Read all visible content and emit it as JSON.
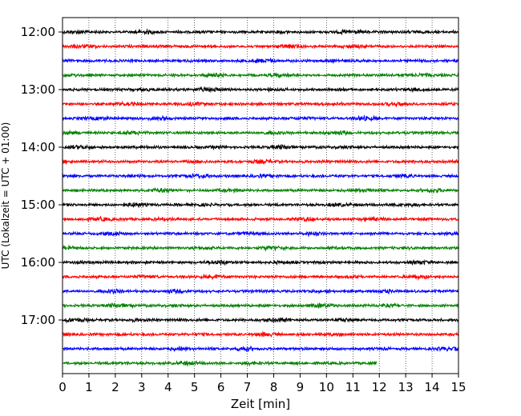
{
  "chart_data": {
    "type": "line",
    "subtype": "helicorder",
    "title": "",
    "xlabel": "Zeit  [min]",
    "ylabel": "UTC (Lokalzeit = UTC + 01:00)",
    "xlim": [
      0,
      15
    ],
    "x_ticks": [
      0,
      1,
      2,
      3,
      4,
      5,
      6,
      7,
      8,
      9,
      10,
      11,
      12,
      13,
      14,
      15
    ],
    "x_tick_labels": [
      "0",
      "1",
      "2",
      "3",
      "4",
      "5",
      "6",
      "7",
      "8",
      "9",
      "10",
      "11",
      "12",
      "13",
      "14",
      "15"
    ],
    "vertical_grid": "dotted",
    "y_tick_labels": [
      "12:00",
      "13:00",
      "14:00",
      "15:00",
      "16:00",
      "17:00"
    ],
    "hours_between_labels": 1,
    "trace_minutes": 15,
    "trace_count": 24,
    "start_time": "12:00",
    "last_trace_end_minute": 11.9,
    "trace_colors": [
      "#000000",
      "#ff0000",
      "#0000ff",
      "#008000"
    ],
    "amplitude_note": "low-amplitude background noise, no large events"
  }
}
